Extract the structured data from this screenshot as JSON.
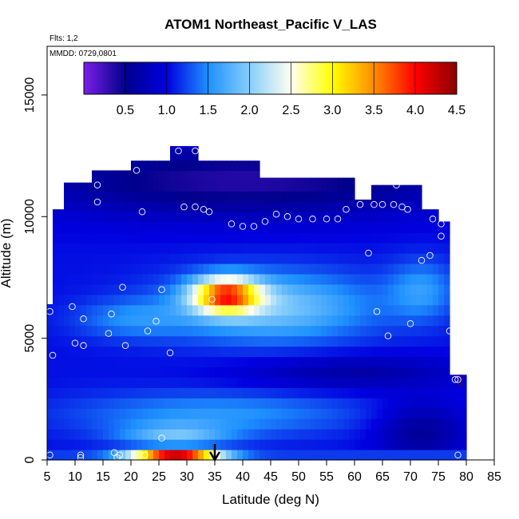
{
  "chart_data": {
    "type": "heatmap",
    "title": "ATOM1 Northeast_Pacific V_LAS",
    "annotation_top": "Flts: 1,2",
    "annotation_inner": "MMDD: 0729,0801",
    "xlabel": "Latitude (deg N)",
    "ylabel": "Altitude (m)",
    "xlim": [
      5,
      85
    ],
    "ylim": [
      0,
      17000
    ],
    "x_ticks": [
      5,
      10,
      15,
      20,
      25,
      30,
      35,
      40,
      45,
      50,
      55,
      60,
      65,
      70,
      75,
      80,
      85
    ],
    "y_ticks": [
      0,
      5000,
      10000,
      15000
    ],
    "colorbar": {
      "min": 0.0,
      "max": 4.5,
      "ticks": [
        "0.5",
        "1.0",
        "1.5",
        "2.0",
        "2.5",
        "3.0",
        "3.5",
        "4.0",
        "4.5"
      ],
      "colors": [
        "#7B1FE8",
        "#00008B",
        "#0000E0",
        "#1E90FF",
        "#87CEFA",
        "#FFFFF0",
        "#FFFF00",
        "#FF8C00",
        "#FF0000",
        "#8B0000"
      ]
    },
    "arrow_marker_latitude": 35,
    "colors": {
      "field_low": "#7B1FE8",
      "field_mid": "#1E90FF",
      "field_high": "#FF0000"
    },
    "grid": false,
    "observations": [
      {
        "lat": 5.5,
        "alt": 6100
      },
      {
        "lat": 6.0,
        "alt": 4300
      },
      {
        "lat": 7.0,
        "alt": 11300
      },
      {
        "lat": 7.0,
        "alt": 10500
      },
      {
        "lat": 9.5,
        "alt": 6300
      },
      {
        "lat": 10.0,
        "alt": 4800
      },
      {
        "lat": 11.5,
        "alt": 5800
      },
      {
        "lat": 11.5,
        "alt": 4700
      },
      {
        "lat": 14.0,
        "alt": 11300
      },
      {
        "lat": 14.0,
        "alt": 10600
      },
      {
        "lat": 16.5,
        "alt": 6000
      },
      {
        "lat": 16.0,
        "alt": 5200
      },
      {
        "lat": 18.5,
        "alt": 7100
      },
      {
        "lat": 19.0,
        "alt": 4700
      },
      {
        "lat": 21.0,
        "alt": 11900
      },
      {
        "lat": 22.0,
        "alt": 10200
      },
      {
        "lat": 23.0,
        "alt": 5300
      },
      {
        "lat": 24.5,
        "alt": 5700
      },
      {
        "lat": 25.5,
        "alt": 7000
      },
      {
        "lat": 27.0,
        "alt": 4400
      },
      {
        "lat": 28.5,
        "alt": 12700
      },
      {
        "lat": 29.5,
        "alt": 10400
      },
      {
        "lat": 31.5,
        "alt": 10400
      },
      {
        "lat": 31.5,
        "alt": 12700
      },
      {
        "lat": 33.0,
        "alt": 10300
      },
      {
        "lat": 34.0,
        "alt": 10200
      },
      {
        "lat": 34.5,
        "alt": 6600
      },
      {
        "lat": 38.0,
        "alt": 9700
      },
      {
        "lat": 40.0,
        "alt": 9600
      },
      {
        "lat": 42.0,
        "alt": 9600
      },
      {
        "lat": 44.0,
        "alt": 9800
      },
      {
        "lat": 46.0,
        "alt": 10100
      },
      {
        "lat": 48.0,
        "alt": 10000
      },
      {
        "lat": 50.0,
        "alt": 9900
      },
      {
        "lat": 52.5,
        "alt": 9900
      },
      {
        "lat": 55.0,
        "alt": 9900
      },
      {
        "lat": 57.0,
        "alt": 9900
      },
      {
        "lat": 58.5,
        "alt": 10300
      },
      {
        "lat": 61.0,
        "alt": 10500
      },
      {
        "lat": 62.5,
        "alt": 8500
      },
      {
        "lat": 63.5,
        "alt": 10500
      },
      {
        "lat": 64.0,
        "alt": 6100
      },
      {
        "lat": 65.0,
        "alt": 10500
      },
      {
        "lat": 66.0,
        "alt": 5100
      },
      {
        "lat": 67.0,
        "alt": 10500
      },
      {
        "lat": 67.5,
        "alt": 11300
      },
      {
        "lat": 68.5,
        "alt": 10400
      },
      {
        "lat": 69.5,
        "alt": 10300
      },
      {
        "lat": 70.0,
        "alt": 5600
      },
      {
        "lat": 72.0,
        "alt": 8200
      },
      {
        "lat": 73.5,
        "alt": 8400
      },
      {
        "lat": 74.0,
        "alt": 9900
      },
      {
        "lat": 75.5,
        "alt": 9700
      },
      {
        "lat": 75.5,
        "alt": 9200
      },
      {
        "lat": 77.0,
        "alt": 5300
      },
      {
        "lat": 78.0,
        "alt": 3300
      },
      {
        "lat": 78.5,
        "alt": 3300
      },
      {
        "lat": 78.5,
        "alt": 200
      },
      {
        "lat": 5.5,
        "alt": 200
      },
      {
        "lat": 11.0,
        "alt": 200
      },
      {
        "lat": 11.0,
        "alt": 100
      },
      {
        "lat": 17.0,
        "alt": 300
      },
      {
        "lat": 17.5,
        "alt": 100
      },
      {
        "lat": 18.0,
        "alt": 200
      },
      {
        "lat": 22.5,
        "alt": 200
      },
      {
        "lat": 25.5,
        "alt": 900
      }
    ]
  }
}
